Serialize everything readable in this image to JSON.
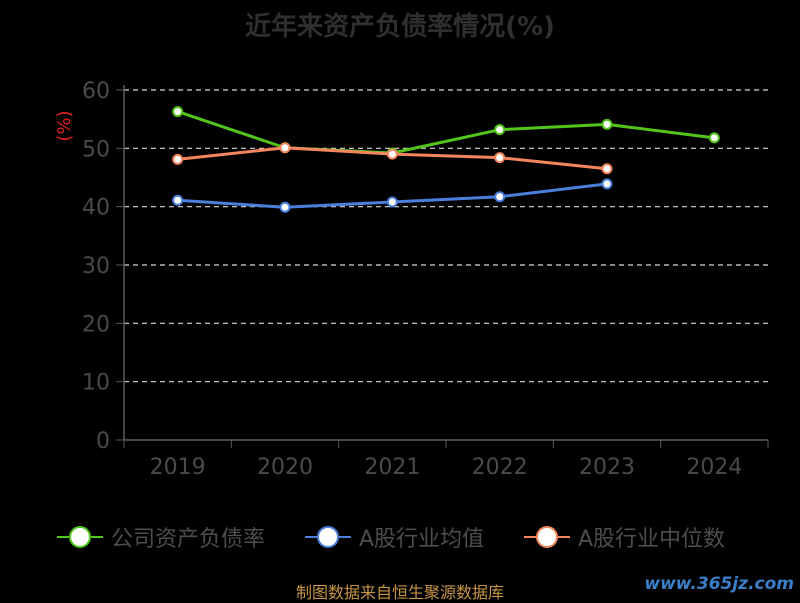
{
  "title": "近年来资产负债率情况(%)",
  "source": "制图数据来自恒生聚源数据库",
  "watermark": "www.365jz.com",
  "chart_data": {
    "type": "line",
    "title": "近年来资产负债率情况(%)",
    "ylabel": "(%)",
    "ylim": [
      0,
      60
    ],
    "yticks": [
      0,
      10,
      20,
      30,
      40,
      50,
      60
    ],
    "categories": [
      "2019",
      "2020",
      "2021",
      "2022",
      "2023",
      "2024"
    ],
    "grid": true,
    "legend_position": "bottom",
    "series": [
      {
        "name": "公司资产负债率",
        "color": "#52c41a",
        "values": [
          56.3,
          50.1,
          49.2,
          53.2,
          54.1,
          51.8
        ]
      },
      {
        "name": "A股行业均值",
        "color": "#4a7fdc",
        "values": [
          41.1,
          39.9,
          40.8,
          41.7,
          43.9,
          null
        ]
      },
      {
        "name": "A股行业中位数",
        "color": "#f4855c",
        "values": [
          48.1,
          50.1,
          49.0,
          48.4,
          46.5,
          null
        ]
      }
    ]
  }
}
